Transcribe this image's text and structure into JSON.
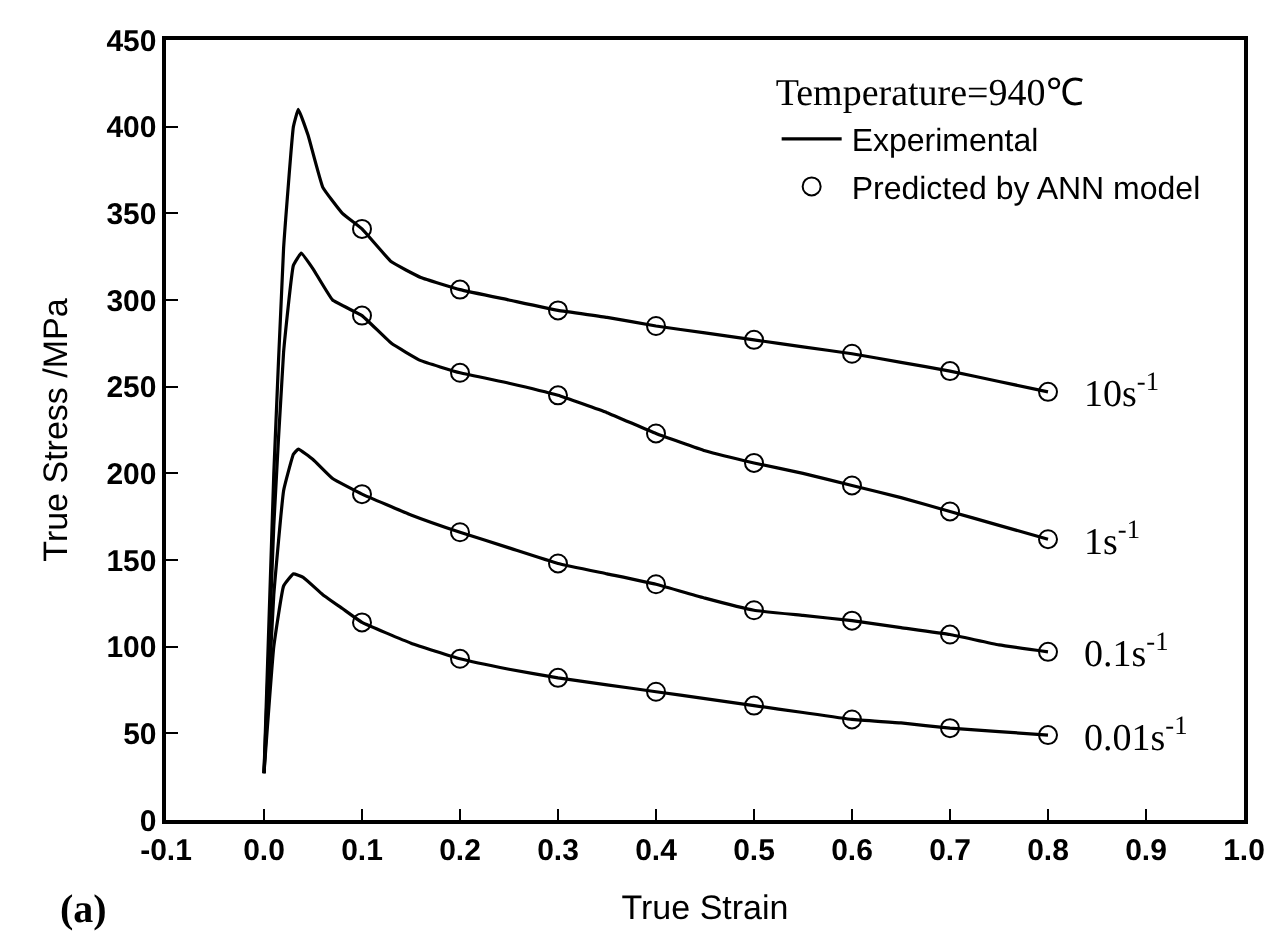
{
  "chart_data": {
    "type": "line",
    "xlabel": "True Strain",
    "ylabel": "True Stress /MPa",
    "legend_title": "Temperature=940℃",
    "legend": "top right",
    "xlim": [
      -0.1,
      1.0
    ],
    "xticks": [
      -0.1,
      {
        "value": 0,
        "label": "0.0"
      },
      0.1,
      0.2,
      0.3,
      0.4,
      0.5,
      0.6,
      0.7,
      0.8,
      0.9,
      {
        "value": 1,
        "label": "1.0"
      }
    ],
    "ylim": [
      0,
      450
    ],
    "yticks": [
      0,
      50,
      100,
      150,
      200,
      250,
      300,
      350,
      400,
      450
    ],
    "series": [
      {
        "name": "Experimental",
        "marker": "none",
        "line_style": "solid",
        "color": "#000000",
        "x": [
          0,
          0.01,
          0.02,
          0.03,
          0.035,
          0.045,
          0.06,
          0.08,
          0.1,
          0.13,
          0.16,
          0.2,
          0.25,
          0.3,
          0.35,
          0.4,
          0.45,
          0.5,
          0.55,
          0.6,
          0.65,
          0.7,
          0.75,
          0.8
        ],
        "values": [
          27,
          200,
          330,
          400,
          410,
          395,
          365,
          350,
          341,
          322,
          313,
          306,
          300,
          294,
          290,
          285,
          281,
          277,
          273,
          269,
          264,
          259,
          253,
          247
        ]
      },
      {
        "marker": "none",
        "line_style": "solid",
        "color": "#000000",
        "x": [
          0,
          0.01,
          0.02,
          0.03,
          0.038,
          0.05,
          0.07,
          0.1,
          0.13,
          0.16,
          0.2,
          0.25,
          0.3,
          0.35,
          0.4,
          0.45,
          0.5,
          0.55,
          0.6,
          0.65,
          0.7,
          0.75,
          0.8
        ],
        "values": [
          27,
          170,
          270,
          320,
          327,
          318,
          300,
          291,
          275,
          265,
          258,
          252,
          245,
          235,
          223,
          213,
          206,
          200,
          193,
          186,
          178,
          170,
          162
        ]
      },
      {
        "marker": "none",
        "line_style": "solid",
        "color": "#000000",
        "x": [
          0,
          0.01,
          0.02,
          0.03,
          0.035,
          0.05,
          0.07,
          0.1,
          0.15,
          0.2,
          0.25,
          0.3,
          0.35,
          0.4,
          0.45,
          0.5,
          0.55,
          0.6,
          0.65,
          0.7,
          0.75,
          0.8
        ],
        "values": [
          27,
          130,
          190,
          211,
          214,
          208,
          197,
          188,
          176,
          166,
          157,
          148,
          142,
          136,
          128,
          121,
          118,
          115,
          111,
          107,
          101,
          97
        ]
      },
      {
        "marker": "none",
        "line_style": "solid",
        "color": "#000000",
        "x": [
          0,
          0.01,
          0.02,
          0.03,
          0.04,
          0.06,
          0.08,
          0.1,
          0.15,
          0.2,
          0.25,
          0.3,
          0.35,
          0.4,
          0.45,
          0.5,
          0.55,
          0.6,
          0.65,
          0.7,
          0.75,
          0.8
        ],
        "values": [
          27,
          100,
          135,
          142,
          140,
          130,
          122,
          114,
          102,
          93,
          87,
          82,
          78,
          74,
          70,
          66,
          62,
          58,
          56,
          53,
          51,
          49
        ]
      },
      {
        "name": "Predicted by ANN model",
        "type": "scatter",
        "marker": "circle",
        "color": "#000000",
        "x": [
          0.1,
          0.2,
          0.3,
          0.4,
          0.5,
          0.6,
          0.7,
          0.8
        ],
        "values": [
          341,
          306,
          294,
          285,
          277,
          269,
          259,
          247
        ]
      },
      {
        "type": "scatter",
        "marker": "circle",
        "color": "#000000",
        "x": [
          0.1,
          0.2,
          0.3,
          0.4,
          0.5,
          0.6,
          0.7,
          0.8
        ],
        "values": [
          291,
          258,
          245,
          223,
          206,
          193,
          178,
          162
        ]
      },
      {
        "type": "scatter",
        "marker": "circle",
        "color": "#000000",
        "x": [
          0.1,
          0.2,
          0.3,
          0.4,
          0.5,
          0.6,
          0.7,
          0.8
        ],
        "values": [
          188,
          166,
          148,
          136,
          121,
          115,
          107,
          97
        ]
      },
      {
        "type": "scatter",
        "marker": "circle",
        "color": "#000000",
        "x": [
          0.1,
          0.2,
          0.3,
          0.4,
          0.5,
          0.6,
          0.7,
          0.8
        ],
        "values": [
          114,
          93,
          82,
          74,
          66,
          58,
          53,
          49
        ]
      }
    ],
    "annotations": [
      "10s$^{-1}$",
      "1s$^{-1}$",
      "0.1s$^{-1}$",
      "0.01s$^{-1}$",
      "(a)"
    ]
  }
}
